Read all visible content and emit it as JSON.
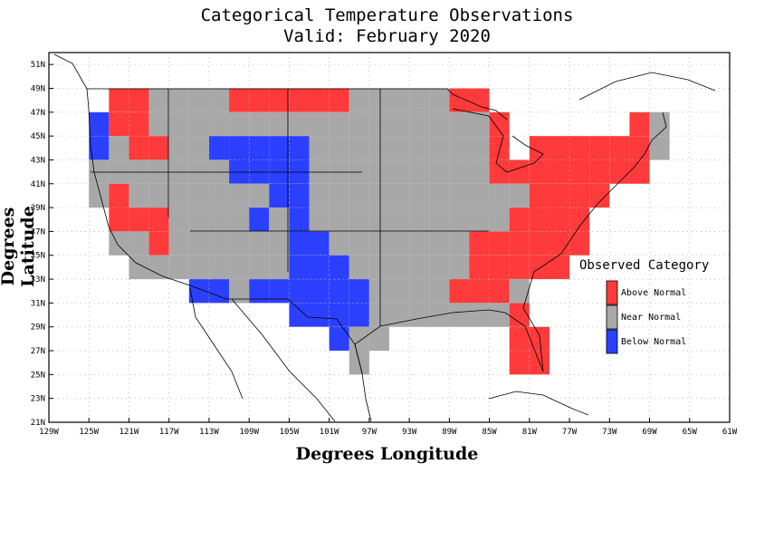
{
  "title_line1": "Categorical Temperature Observations",
  "title_line2": "Valid: February 2020",
  "xlabel": "Degrees Longitude",
  "ylabel": "Degrees Latitude",
  "colors": {
    "above": "#ff3a3a",
    "near": "#a8a8a8",
    "below": "#2b40ff",
    "grid": "#b0b0b0",
    "lines": "#000000"
  },
  "legend": {
    "title": "Observed Category",
    "items": [
      {
        "key": "above",
        "label": "Above Normal"
      },
      {
        "key": "near",
        "label": "Near Normal"
      },
      {
        "key": "below",
        "label": "Below Normal"
      }
    ]
  },
  "chart_data": {
    "type": "heatmap",
    "title": "Categorical Temperature Observations",
    "subtitle": "Valid: February 2020",
    "xlabel": "Degrees Longitude",
    "ylabel": "Degrees Latitude",
    "x_ticks": [
      "129W",
      "125W",
      "121W",
      "117W",
      "113W",
      "109W",
      "105W",
      "101W",
      "97W",
      "93W",
      "89W",
      "85W",
      "81W",
      "77W",
      "73W",
      "69W",
      "65W",
      "61W"
    ],
    "y_ticks": [
      "21N",
      "23N",
      "25N",
      "27N",
      "29N",
      "31N",
      "33N",
      "35N",
      "37N",
      "39N",
      "41N",
      "43N",
      "45N",
      "47N",
      "49N",
      "51N"
    ],
    "lon_range": [
      -129,
      -61
    ],
    "lat_range": [
      21,
      52
    ],
    "grid": true,
    "cell_size_deg": 2,
    "rows": [
      {
        "lat": 48,
        "cells": [
          [
            -122,
            "A"
          ],
          [
            -120,
            "A"
          ],
          [
            -118,
            "N"
          ],
          [
            -116,
            "N"
          ],
          [
            -114,
            "N"
          ],
          [
            -112,
            "N"
          ],
          [
            -110,
            "A"
          ],
          [
            -108,
            "A"
          ],
          [
            -106,
            "A"
          ],
          [
            -104,
            "A"
          ],
          [
            -102,
            "A"
          ],
          [
            -100,
            "A"
          ],
          [
            -98,
            "N"
          ],
          [
            -96,
            "N"
          ],
          [
            -94,
            "N"
          ],
          [
            -92,
            "N"
          ],
          [
            -90,
            "N"
          ],
          [
            -88,
            "A"
          ],
          [
            -86,
            "A"
          ]
        ]
      },
      {
        "lat": 46,
        "cells": [
          [
            -124,
            "B"
          ],
          [
            -122,
            "A"
          ],
          [
            -120,
            "A"
          ],
          [
            -118,
            "N"
          ],
          [
            -116,
            "N"
          ],
          [
            -114,
            "N"
          ],
          [
            -112,
            "N"
          ],
          [
            -110,
            "N"
          ],
          [
            -108,
            "N"
          ],
          [
            -106,
            "N"
          ],
          [
            -104,
            "N"
          ],
          [
            -102,
            "N"
          ],
          [
            -100,
            "N"
          ],
          [
            -98,
            "N"
          ],
          [
            -96,
            "N"
          ],
          [
            -94,
            "N"
          ],
          [
            -92,
            "N"
          ],
          [
            -90,
            "N"
          ],
          [
            -88,
            "N"
          ],
          [
            -86,
            "N"
          ],
          [
            -84,
            "A"
          ],
          [
            -70,
            "A"
          ],
          [
            -68,
            "N"
          ]
        ]
      },
      {
        "lat": 44,
        "cells": [
          [
            -124,
            "B"
          ],
          [
            -122,
            "N"
          ],
          [
            -120,
            "A"
          ],
          [
            -118,
            "A"
          ],
          [
            -116,
            "N"
          ],
          [
            -114,
            "N"
          ],
          [
            -112,
            "B"
          ],
          [
            -110,
            "B"
          ],
          [
            -108,
            "B"
          ],
          [
            -106,
            "B"
          ],
          [
            -104,
            "B"
          ],
          [
            -102,
            "N"
          ],
          [
            -100,
            "N"
          ],
          [
            -98,
            "N"
          ],
          [
            -96,
            "N"
          ],
          [
            -94,
            "N"
          ],
          [
            -92,
            "N"
          ],
          [
            -90,
            "N"
          ],
          [
            -88,
            "N"
          ],
          [
            -86,
            "N"
          ],
          [
            -84,
            "A"
          ],
          [
            -80,
            "A"
          ],
          [
            -78,
            "A"
          ],
          [
            -76,
            "A"
          ],
          [
            -74,
            "A"
          ],
          [
            -72,
            "A"
          ],
          [
            -70,
            "A"
          ],
          [
            -68,
            "N"
          ]
        ]
      },
      {
        "lat": 42,
        "cells": [
          [
            -124,
            "N"
          ],
          [
            -122,
            "N"
          ],
          [
            -120,
            "N"
          ],
          [
            -118,
            "N"
          ],
          [
            -116,
            "N"
          ],
          [
            -114,
            "N"
          ],
          [
            -112,
            "N"
          ],
          [
            -110,
            "B"
          ],
          [
            -108,
            "B"
          ],
          [
            -106,
            "B"
          ],
          [
            -104,
            "B"
          ],
          [
            -102,
            "N"
          ],
          [
            -100,
            "N"
          ],
          [
            -98,
            "N"
          ],
          [
            -96,
            "N"
          ],
          [
            -94,
            "N"
          ],
          [
            -92,
            "N"
          ],
          [
            -90,
            "N"
          ],
          [
            -88,
            "N"
          ],
          [
            -86,
            "N"
          ],
          [
            -84,
            "A"
          ],
          [
            -82,
            "A"
          ],
          [
            -80,
            "A"
          ],
          [
            -78,
            "A"
          ],
          [
            -76,
            "A"
          ],
          [
            -74,
            "A"
          ],
          [
            -72,
            "A"
          ],
          [
            -70,
            "A"
          ]
        ]
      },
      {
        "lat": 40,
        "cells": [
          [
            -124,
            "N"
          ],
          [
            -122,
            "A"
          ],
          [
            -120,
            "N"
          ],
          [
            -118,
            "N"
          ],
          [
            -116,
            "N"
          ],
          [
            -114,
            "N"
          ],
          [
            -112,
            "N"
          ],
          [
            -110,
            "N"
          ],
          [
            -108,
            "N"
          ],
          [
            -106,
            "B"
          ],
          [
            -104,
            "B"
          ],
          [
            -102,
            "N"
          ],
          [
            -100,
            "N"
          ],
          [
            -98,
            "N"
          ],
          [
            -96,
            "N"
          ],
          [
            -94,
            "N"
          ],
          [
            -92,
            "N"
          ],
          [
            -90,
            "N"
          ],
          [
            -88,
            "N"
          ],
          [
            -86,
            "N"
          ],
          [
            -84,
            "N"
          ],
          [
            -82,
            "N"
          ],
          [
            -80,
            "A"
          ],
          [
            -78,
            "A"
          ],
          [
            -76,
            "A"
          ],
          [
            -74,
            "A"
          ]
        ]
      },
      {
        "lat": 38,
        "cells": [
          [
            -122,
            "A"
          ],
          [
            -120,
            "A"
          ],
          [
            -118,
            "A"
          ],
          [
            -116,
            "N"
          ],
          [
            -114,
            "N"
          ],
          [
            -112,
            "N"
          ],
          [
            -110,
            "N"
          ],
          [
            -108,
            "B"
          ],
          [
            -106,
            "N"
          ],
          [
            -104,
            "B"
          ],
          [
            -102,
            "N"
          ],
          [
            -100,
            "N"
          ],
          [
            -98,
            "N"
          ],
          [
            -96,
            "N"
          ],
          [
            -94,
            "N"
          ],
          [
            -92,
            "N"
          ],
          [
            -90,
            "N"
          ],
          [
            -88,
            "N"
          ],
          [
            -86,
            "N"
          ],
          [
            -84,
            "N"
          ],
          [
            -82,
            "A"
          ],
          [
            -80,
            "A"
          ],
          [
            -78,
            "A"
          ],
          [
            -76,
            "A"
          ]
        ]
      },
      {
        "lat": 36,
        "cells": [
          [
            -122,
            "N"
          ],
          [
            -120,
            "N"
          ],
          [
            -118,
            "A"
          ],
          [
            -116,
            "N"
          ],
          [
            -114,
            "N"
          ],
          [
            -112,
            "N"
          ],
          [
            -110,
            "N"
          ],
          [
            -108,
            "N"
          ],
          [
            -106,
            "N"
          ],
          [
            -104,
            "B"
          ],
          [
            -102,
            "B"
          ],
          [
            -100,
            "N"
          ],
          [
            -98,
            "N"
          ],
          [
            -96,
            "N"
          ],
          [
            -94,
            "N"
          ],
          [
            -92,
            "N"
          ],
          [
            -90,
            "N"
          ],
          [
            -88,
            "N"
          ],
          [
            -86,
            "A"
          ],
          [
            -84,
            "A"
          ],
          [
            -82,
            "A"
          ],
          [
            -80,
            "A"
          ],
          [
            -78,
            "A"
          ],
          [
            -76,
            "A"
          ]
        ]
      },
      {
        "lat": 34,
        "cells": [
          [
            -120,
            "N"
          ],
          [
            -118,
            "N"
          ],
          [
            -116,
            "N"
          ],
          [
            -114,
            "N"
          ],
          [
            -112,
            "N"
          ],
          [
            -110,
            "N"
          ],
          [
            -108,
            "N"
          ],
          [
            -106,
            "N"
          ],
          [
            -104,
            "B"
          ],
          [
            -102,
            "B"
          ],
          [
            -100,
            "B"
          ],
          [
            -98,
            "N"
          ],
          [
            -96,
            "N"
          ],
          [
            -94,
            "N"
          ],
          [
            -92,
            "N"
          ],
          [
            -90,
            "N"
          ],
          [
            -88,
            "N"
          ],
          [
            -86,
            "A"
          ],
          [
            -84,
            "A"
          ],
          [
            -82,
            "A"
          ],
          [
            -80,
            "A"
          ],
          [
            -78,
            "A"
          ]
        ]
      },
      {
        "lat": 32,
        "cells": [
          [
            -114,
            "B"
          ],
          [
            -112,
            "B"
          ],
          [
            -110,
            "N"
          ],
          [
            -108,
            "B"
          ],
          [
            -106,
            "B"
          ],
          [
            -104,
            "B"
          ],
          [
            -102,
            "B"
          ],
          [
            -100,
            "B"
          ],
          [
            -98,
            "B"
          ],
          [
            -96,
            "N"
          ],
          [
            -94,
            "N"
          ],
          [
            -92,
            "N"
          ],
          [
            -90,
            "N"
          ],
          [
            -88,
            "A"
          ],
          [
            -86,
            "A"
          ],
          [
            -84,
            "A"
          ],
          [
            -82,
            "N"
          ]
        ]
      },
      {
        "lat": 30,
        "cells": [
          [
            -104,
            "B"
          ],
          [
            -102,
            "B"
          ],
          [
            -100,
            "B"
          ],
          [
            -98,
            "B"
          ],
          [
            -96,
            "N"
          ],
          [
            -94,
            "N"
          ],
          [
            -92,
            "N"
          ],
          [
            -90,
            "N"
          ],
          [
            -88,
            "N"
          ],
          [
            -86,
            "N"
          ],
          [
            -84,
            "N"
          ],
          [
            -82,
            "A"
          ]
        ]
      },
      {
        "lat": 28,
        "cells": [
          [
            -100,
            "B"
          ],
          [
            -98,
            "N"
          ],
          [
            -96,
            "N"
          ],
          [
            -82,
            "A"
          ],
          [
            -80,
            "A"
          ]
        ]
      },
      {
        "lat": 26,
        "cells": [
          [
            -98,
            "N"
          ],
          [
            -82,
            "A"
          ],
          [
            -80,
            "A"
          ]
        ]
      }
    ],
    "category_keys": {
      "A": "Above Normal",
      "N": "Near Normal",
      "B": "Below Normal"
    }
  }
}
